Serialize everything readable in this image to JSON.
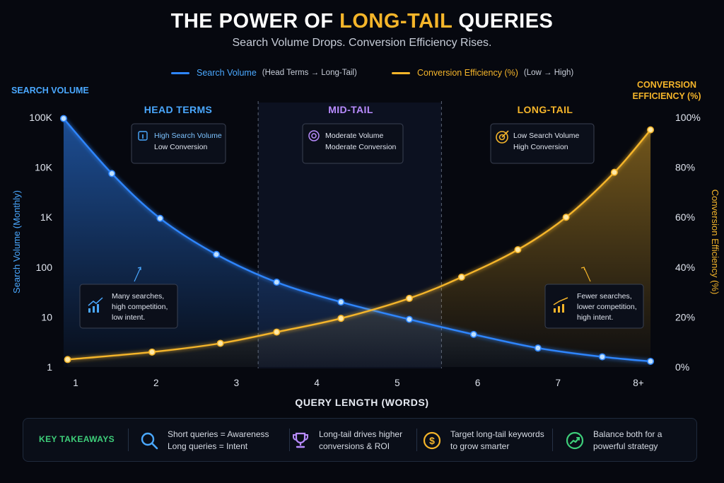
{
  "header": {
    "title_part1": "THE POWER OF ",
    "title_accent": "LONG-TAIL",
    "title_part2": " QUERIES",
    "subtitle": "Search Volume Drops. Conversion Efficiency Rises."
  },
  "legend": {
    "volume_label": "Search Volume",
    "volume_note": "(Head Terms → Long-Tail)",
    "conversion_label": "Conversion Efficiency (%)",
    "conversion_note": "(Low → High)"
  },
  "axis_headers": {
    "left_line1": "SEARCH VOLUME",
    "right_line1": "CONVERSION",
    "right_line2": "EFFICIENCY (%)"
  },
  "colors": {
    "volume": "#2f86ff",
    "conversion": "#f5b52a",
    "head": "#4aa8ff",
    "mid": "#b98cff",
    "long": "#f5b52a",
    "takeaway_label": "#3ecf7a"
  },
  "chart_data": {
    "type": "line",
    "xlabel": "QUERY LENGTH (WORDS)",
    "ylabel": "Search Volume (Monthly)",
    "y2label": "Conversion Efficiency (%)",
    "categories": [
      "1",
      "2",
      "3",
      "4",
      "5",
      "6",
      "7",
      "8+"
    ],
    "x_range": [
      0.9,
      8.15
    ],
    "y_scale": "log",
    "ylim": [
      1,
      100000
    ],
    "y_ticks": [
      1,
      10,
      100,
      1000,
      10000,
      100000
    ],
    "y_tick_labels": [
      "1",
      "10",
      "100",
      "1K",
      "10K",
      "100K"
    ],
    "y2lim": [
      0,
      100
    ],
    "y2_ticks": [
      0,
      20,
      40,
      60,
      80,
      100
    ],
    "y2_tick_labels": [
      "0%",
      "20%",
      "40%",
      "60%",
      "80%",
      "100%"
    ],
    "grid": false,
    "legend": "top-center",
    "series": [
      {
        "name": "Search Volume",
        "axis": "left",
        "color": "#2f86ff",
        "points": [
          {
            "x": 0.85,
            "y": 95000
          },
          {
            "x": 1.45,
            "y": 7500
          },
          {
            "x": 2.05,
            "y": 950
          },
          {
            "x": 2.75,
            "y": 180
          },
          {
            "x": 3.5,
            "y": 50
          },
          {
            "x": 4.3,
            "y": 20
          },
          {
            "x": 5.15,
            "y": 9
          },
          {
            "x": 5.95,
            "y": 4.5
          },
          {
            "x": 6.75,
            "y": 2.4
          },
          {
            "x": 7.55,
            "y": 1.6
          },
          {
            "x": 8.15,
            "y": 1.3
          }
        ]
      },
      {
        "name": "Conversion Efficiency (%)",
        "axis": "right",
        "color": "#f5b52a",
        "points": [
          {
            "x": 0.9,
            "y": 3
          },
          {
            "x": 1.95,
            "y": 6
          },
          {
            "x": 2.8,
            "y": 9.5
          },
          {
            "x": 3.5,
            "y": 14
          },
          {
            "x": 4.3,
            "y": 19.5
          },
          {
            "x": 5.15,
            "y": 27.5
          },
          {
            "x": 5.8,
            "y": 36
          },
          {
            "x": 6.5,
            "y": 47
          },
          {
            "x": 7.1,
            "y": 60
          },
          {
            "x": 7.7,
            "y": 78
          },
          {
            "x": 8.15,
            "y": 95
          }
        ]
      }
    ],
    "zones": [
      {
        "label": "HEAD TERMS",
        "color": "#4aa8ff",
        "x_start": 0.9,
        "x_end": 3.27,
        "icon": "info-icon",
        "card_line1": "High Search Volume",
        "card_line2": "Low Conversion"
      },
      {
        "label": "MID-TAIL",
        "color": "#b98cff",
        "x_start": 3.27,
        "x_end": 5.55,
        "icon": "target-icon",
        "card_line1": "Moderate Volume",
        "card_line2": "Moderate Conversion"
      },
      {
        "label": "LONG-TAIL",
        "color": "#f5b52a",
        "x_start": 5.55,
        "x_end": 8.15,
        "icon": "bullseye-icon",
        "card_line1": "Low Search Volume",
        "card_line2": "High Conversion"
      }
    ],
    "zone_boundaries": [
      3.27,
      5.55
    ],
    "annotations": [
      {
        "icon": "trend-up-icon",
        "color": "#4aa8ff",
        "lines": [
          "Many searches,",
          "high competition,",
          "low intent."
        ]
      },
      {
        "icon": "bar-growth-icon",
        "color": "#f5b52a",
        "lines": [
          "Fewer searches,",
          "lower competition,",
          "high intent."
        ]
      }
    ]
  },
  "takeaways": {
    "label": "KEY TAKEAWAYS",
    "items": [
      {
        "icon": "search-icon",
        "color": "#4aa8ff",
        "line1": "Short queries = Awareness",
        "line2": "Long queries = Intent"
      },
      {
        "icon": "trophy-icon",
        "color": "#b98cff",
        "line1": "Long-tail drives higher",
        "line2": "conversions & ROI"
      },
      {
        "icon": "dollar-icon",
        "color": "#f5b52a",
        "line1": "Target long-tail keywords",
        "line2": "to grow smarter"
      },
      {
        "icon": "growth-icon",
        "color": "#3ecf7a",
        "line1": "Balance both for a",
        "line2": "powerful strategy"
      }
    ]
  }
}
